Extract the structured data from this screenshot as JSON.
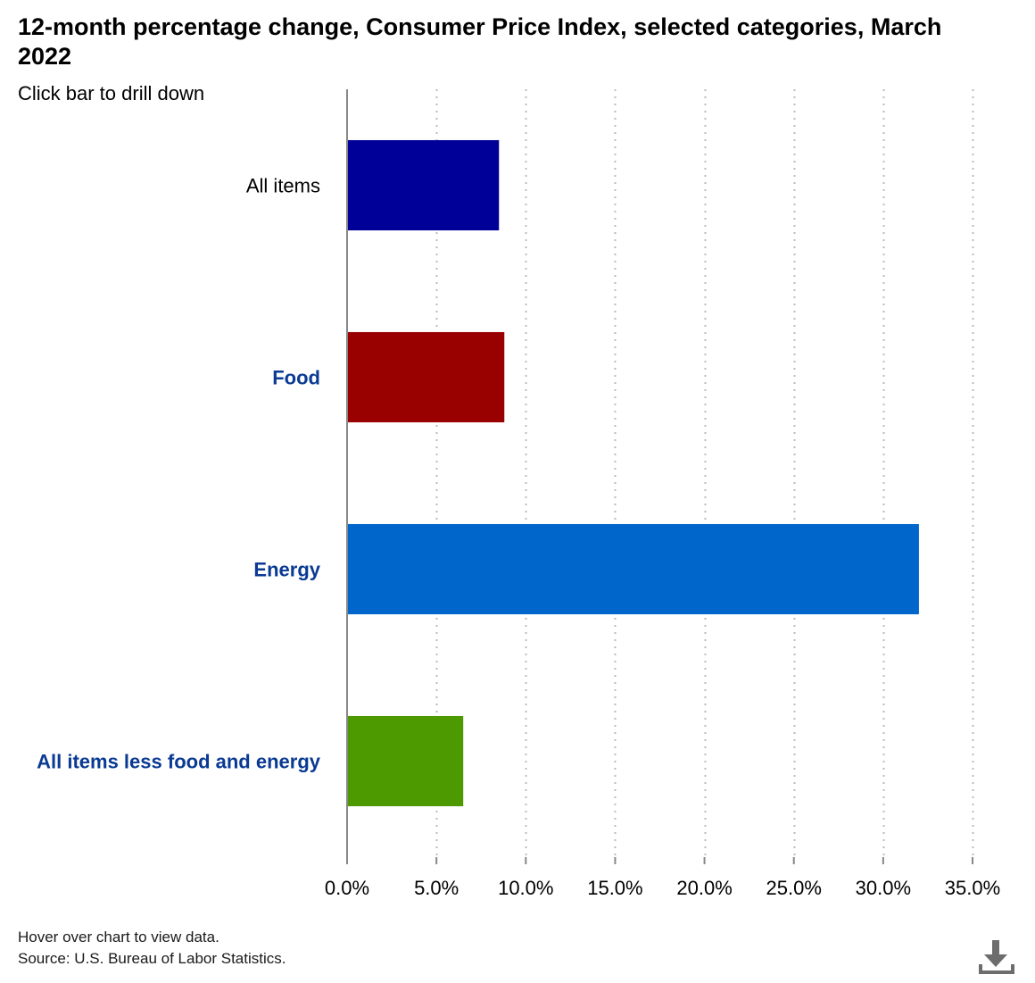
{
  "title": "12-month percentage change, Consumer Price Index, selected categories, March 2022",
  "subtitle": "Click bar to drill down",
  "footer": {
    "hover_note": "Hover over chart to view data.",
    "source": "Source: U.S. Bureau of Labor Statistics."
  },
  "download": {
    "icon": "download-icon"
  },
  "chart_data": {
    "type": "bar",
    "orientation": "horizontal",
    "title": "12-month percentage change, Consumer Price Index, selected categories, March 2022",
    "subtitle": "Click bar to drill down",
    "categories": [
      "All items",
      "Food",
      "Energy",
      "All items less food and energy"
    ],
    "category_links": [
      false,
      true,
      true,
      true
    ],
    "values": [
      8.5,
      8.8,
      32.0,
      6.5
    ],
    "colors": [
      "#000099",
      "#990000",
      "#0066cc",
      "#4d9900"
    ],
    "xlim": [
      0,
      35
    ],
    "xticks": [
      0,
      5,
      10,
      15,
      20,
      25,
      30,
      35
    ],
    "xtick_labels": [
      "0.0%",
      "5.0%",
      "10.0%",
      "15.0%",
      "20.0%",
      "25.0%",
      "30.0%",
      "35.0%"
    ],
    "xlabel": "",
    "ylabel": "",
    "grid": "vertical dotted",
    "label_color": "#0a3a93",
    "axis_color": "#888888",
    "grid_color": "#bbbbbb"
  }
}
